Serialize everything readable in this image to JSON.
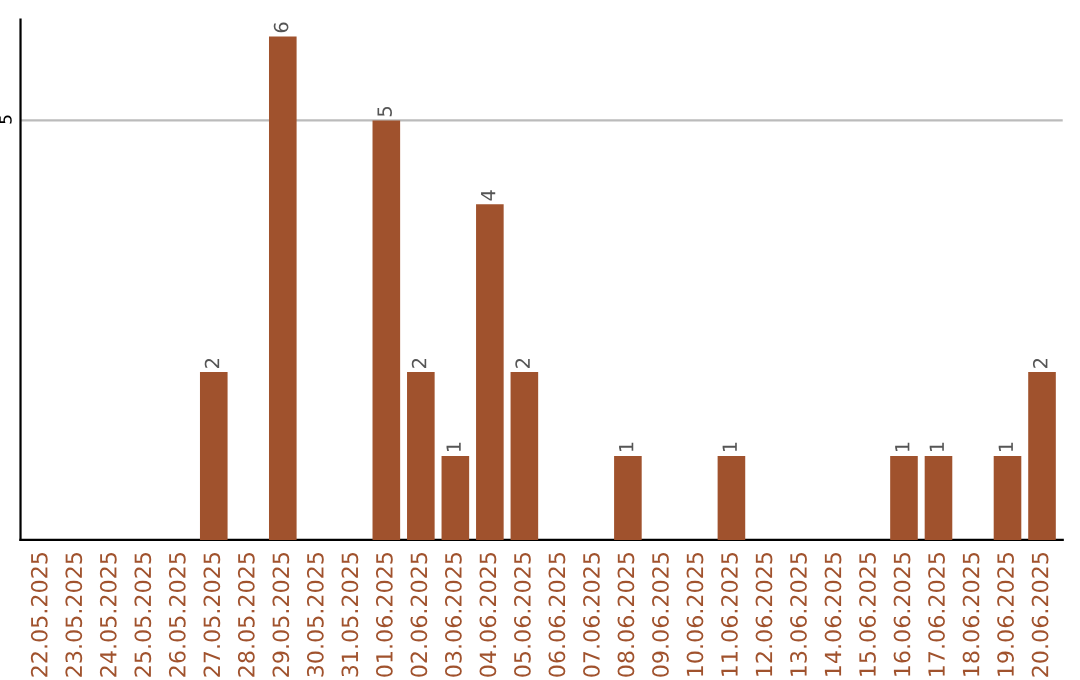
{
  "chart_data": {
    "type": "bar",
    "categories": [
      "22.05.2025",
      "23.05.2025",
      "24.05.2025",
      "25.05.2025",
      "26.05.2025",
      "27.05.2025",
      "28.05.2025",
      "29.05.2025",
      "30.05.2025",
      "31.05.2025",
      "01.06.2025",
      "02.06.2025",
      "03.06.2025",
      "04.06.2025",
      "05.06.2025",
      "06.06.2025",
      "07.06.2025",
      "08.06.2025",
      "09.06.2025",
      "10.06.2025",
      "11.06.2025",
      "12.06.2025",
      "13.06.2025",
      "14.06.2025",
      "15.06.2025",
      "16.06.2025",
      "17.06.2025",
      "18.06.2025",
      "19.06.2025",
      "20.06.2025"
    ],
    "values": [
      0,
      0,
      0,
      0,
      0,
      2,
      0,
      6,
      0,
      0,
      5,
      2,
      1,
      4,
      2,
      0,
      0,
      1,
      0,
      0,
      1,
      0,
      0,
      0,
      0,
      1,
      1,
      0,
      1,
      2
    ],
    "value_labels": [
      null,
      null,
      null,
      null,
      null,
      "2",
      null,
      "6",
      null,
      null,
      "5",
      "2",
      "1",
      "4",
      "2",
      null,
      null,
      "1",
      null,
      null,
      "1",
      null,
      null,
      null,
      null,
      "1",
      "1",
      null,
      "1",
      "2"
    ],
    "color": "#a0522d",
    "ylim": [
      0,
      6.2
    ],
    "yticks": [
      5
    ],
    "grid": "y"
  }
}
